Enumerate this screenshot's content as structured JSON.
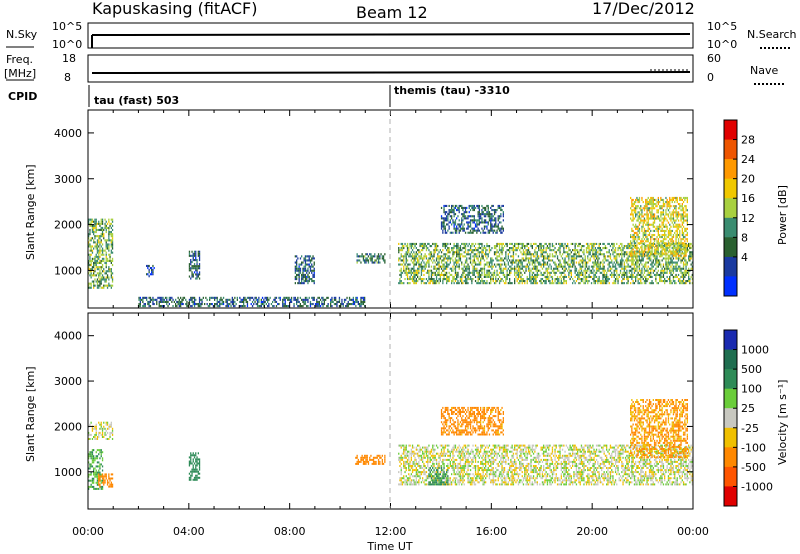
{
  "header": {
    "station": "Kapuskasing (fitACF)",
    "beam": "Beam 12",
    "date": "17/Dec/2012"
  },
  "panels": {
    "nsky": {
      "label": "N.Sky",
      "left_top": "10^5",
      "left_bottom": "10^0",
      "right_top": "10^5",
      "right_bottom": "10^0",
      "right_label": "N.Search"
    },
    "freq": {
      "label_line1": "Freq.",
      "label_line2": "[MHz]",
      "left_top": "18",
      "left_bottom": "8",
      "right_top": "60",
      "right_bottom": "0",
      "right_label": "Nave"
    },
    "cpid": {
      "label": "CPID",
      "program1": "tau (fast) 503",
      "program2": "themis (tau) -3310"
    }
  },
  "power_colorbar": {
    "label": "Power [dB]",
    "ticks": [
      "28",
      "24",
      "20",
      "16",
      "12",
      "8",
      "4"
    ],
    "colors": [
      "#e00000",
      "#ee5500",
      "#ff9900",
      "#f0c800",
      "#a8d040",
      "#3a8c70",
      "#2a6030",
      "#1a3aa0",
      "#0030ff"
    ]
  },
  "velocity_colorbar": {
    "label": "Velocity [m s⁻¹]",
    "ticks": [
      "1000",
      "500",
      "100",
      "25",
      "-25",
      "-100",
      "-500",
      "-1000"
    ],
    "colors": [
      "#1a2ab0",
      "#1f6e50",
      "#2e8b57",
      "#6acd3a",
      "#c8c8c0",
      "#f0c000",
      "#ff8800",
      "#ff5500",
      "#e00000"
    ]
  },
  "chart_data": [
    {
      "type": "heatmap",
      "name": "power",
      "ylabel": "Slant Range [km]",
      "yticks": [
        "4000",
        "3000",
        "2000",
        "1000"
      ],
      "ylim": [
        180,
        4500
      ],
      "xticks": [
        "00:00",
        "04:00",
        "08:00",
        "12:00",
        "16:00",
        "20:00",
        "00:00"
      ],
      "xlim_hours": [
        0,
        24
      ],
      "xlabel": "Time UT",
      "scatter_regions": [
        {
          "t0": 0.0,
          "t1": 1.0,
          "r0": 600,
          "r1": 2100,
          "value_db": 14
        },
        {
          "t0": 2.3,
          "t1": 2.6,
          "r0": 850,
          "r1": 1100,
          "value_db": 6
        },
        {
          "t0": 4.0,
          "t1": 4.4,
          "r0": 800,
          "r1": 1400,
          "value_db": 8
        },
        {
          "t0": 8.2,
          "t1": 9.0,
          "r0": 700,
          "r1": 1300,
          "value_db": 8
        },
        {
          "t0": 10.6,
          "t1": 11.8,
          "r0": 1150,
          "r1": 1350,
          "value_db": 10
        },
        {
          "t0": 2.0,
          "t1": 11.0,
          "r0": 200,
          "r1": 420,
          "value_db": 8
        },
        {
          "t0": 12.3,
          "t1": 24.0,
          "r0": 700,
          "r1": 1600,
          "value_db": 14
        },
        {
          "t0": 14.0,
          "t1": 16.5,
          "r0": 1800,
          "r1": 2400,
          "value_db": 8
        },
        {
          "t0": 21.5,
          "t1": 23.8,
          "r0": 1300,
          "r1": 2600,
          "value_db": 18
        }
      ]
    },
    {
      "type": "heatmap",
      "name": "velocity",
      "ylabel": "Slant Range [km]",
      "yticks": [
        "4000",
        "3000",
        "2000",
        "1000"
      ],
      "ylim": [
        180,
        4500
      ],
      "xticks": [
        "00:00",
        "04:00",
        "08:00",
        "12:00",
        "16:00",
        "20:00",
        "00:00"
      ],
      "xlim_hours": [
        0,
        24
      ],
      "xlabel": "Time UT",
      "scatter_regions": [
        {
          "t0": 0.0,
          "t1": 1.0,
          "r0": 1700,
          "r1": 2100,
          "value_ms": 0
        },
        {
          "t0": 0.0,
          "t1": 0.6,
          "r0": 600,
          "r1": 1500,
          "value_ms": 100
        },
        {
          "t0": 0.4,
          "t1": 1.0,
          "r0": 650,
          "r1": 950,
          "value_ms": -300
        },
        {
          "t0": 4.0,
          "t1": 4.4,
          "r0": 800,
          "r1": 1400,
          "value_ms": 300
        },
        {
          "t0": 10.6,
          "t1": 11.8,
          "r0": 1150,
          "r1": 1350,
          "value_ms": -200
        },
        {
          "t0": 12.3,
          "t1": 24.0,
          "r0": 700,
          "r1": 1600,
          "value_ms": 0
        },
        {
          "t0": 13.5,
          "t1": 14.3,
          "r0": 700,
          "r1": 1100,
          "value_ms": 150
        },
        {
          "t0": 14.0,
          "t1": 16.5,
          "r0": 1800,
          "r1": 2400,
          "value_ms": -150
        },
        {
          "t0": 21.5,
          "t1": 23.8,
          "r0": 1300,
          "r1": 2600,
          "value_ms": -120
        }
      ]
    }
  ]
}
